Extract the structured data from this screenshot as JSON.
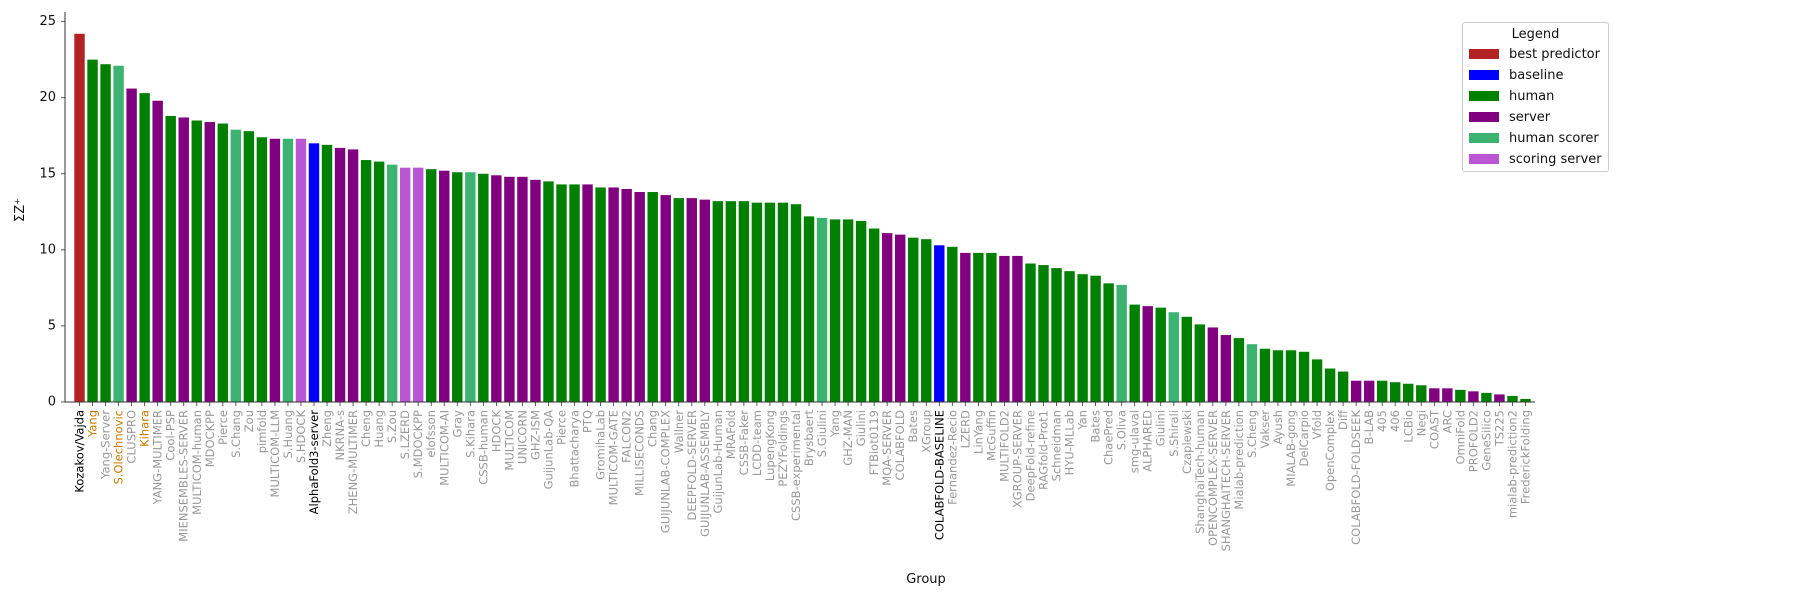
{
  "chart_data": {
    "type": "bar",
    "title": "",
    "xlabel": "Group",
    "ylabel": "ΣZ⁺",
    "ylim": [
      0,
      25.5
    ],
    "yticks": [
      0,
      5,
      10,
      15,
      20,
      25
    ],
    "grid": false,
    "legend": {
      "title": "Legend",
      "placement": "top-right",
      "entries": [
        {
          "name": "best predictor",
          "color": "#b22222"
        },
        {
          "name": "baseline",
          "color": "#0000ff"
        },
        {
          "name": "human",
          "color": "#008000"
        },
        {
          "name": "server",
          "color": "#800080"
        },
        {
          "name": "human scorer",
          "color": "#3cb371"
        },
        {
          "name": "scoring server",
          "color": "#ba55d3"
        }
      ]
    },
    "label_colors": {
      "default": "#999999",
      "highlight": "#000000",
      "orange": "#cc7a00"
    },
    "bars": [
      {
        "name": "Kozakov/Vajda",
        "value": 24.2,
        "type": "best predictor",
        "label": "highlight"
      },
      {
        "name": "Yang",
        "value": 22.5,
        "type": "human",
        "label": "orange"
      },
      {
        "name": "Yang-Server",
        "value": 22.2,
        "type": "human",
        "label": "default"
      },
      {
        "name": "S.Olechnovic",
        "value": 22.1,
        "type": "human scorer",
        "label": "orange"
      },
      {
        "name": "CLUSPRO",
        "value": 20.6,
        "type": "server",
        "label": "default"
      },
      {
        "name": "Kihara",
        "value": 20.3,
        "type": "human",
        "label": "orange"
      },
      {
        "name": "YANG-MULTIMER",
        "value": 19.8,
        "type": "server",
        "label": "default"
      },
      {
        "name": "Cool-PSP",
        "value": 18.8,
        "type": "human",
        "label": "default"
      },
      {
        "name": "MIENSEMBLES-SERVER",
        "value": 18.7,
        "type": "server",
        "label": "default"
      },
      {
        "name": "MULTICOM-human",
        "value": 18.5,
        "type": "human",
        "label": "default"
      },
      {
        "name": "MDOCKPP",
        "value": 18.4,
        "type": "server",
        "label": "default"
      },
      {
        "name": "Pierce",
        "value": 18.3,
        "type": "human",
        "label": "default"
      },
      {
        "name": "S.Chang",
        "value": 17.9,
        "type": "human scorer",
        "label": "default"
      },
      {
        "name": "Zou",
        "value": 17.8,
        "type": "human",
        "label": "default"
      },
      {
        "name": "pimfold",
        "value": 17.4,
        "type": "human",
        "label": "default"
      },
      {
        "name": "MULTICOM-LLM",
        "value": 17.3,
        "type": "server",
        "label": "default"
      },
      {
        "name": "S.Huang",
        "value": 17.3,
        "type": "human scorer",
        "label": "default"
      },
      {
        "name": "S.HDOCK",
        "value": 17.3,
        "type": "scoring server",
        "label": "default"
      },
      {
        "name": "AlphaFold3-server",
        "value": 17.0,
        "type": "baseline",
        "label": "highlight"
      },
      {
        "name": "Zheng",
        "value": 16.9,
        "type": "human",
        "label": "default"
      },
      {
        "name": "NKRNA-s",
        "value": 16.7,
        "type": "server",
        "label": "default"
      },
      {
        "name": "ZHENG-MULTIMER",
        "value": 16.6,
        "type": "server",
        "label": "default"
      },
      {
        "name": "Cheng",
        "value": 15.9,
        "type": "human",
        "label": "default"
      },
      {
        "name": "Huang",
        "value": 15.8,
        "type": "human",
        "label": "default"
      },
      {
        "name": "S.Zou",
        "value": 15.6,
        "type": "human scorer",
        "label": "default"
      },
      {
        "name": "S.LZERD",
        "value": 15.4,
        "type": "scoring server",
        "label": "default"
      },
      {
        "name": "S.MDOCKPP",
        "value": 15.4,
        "type": "scoring server",
        "label": "default"
      },
      {
        "name": "elofsson",
        "value": 15.3,
        "type": "human",
        "label": "default"
      },
      {
        "name": "MULTICOM-AI",
        "value": 15.2,
        "type": "server",
        "label": "default"
      },
      {
        "name": "Gray",
        "value": 15.1,
        "type": "human",
        "label": "default"
      },
      {
        "name": "S.Kihara",
        "value": 15.1,
        "type": "human scorer",
        "label": "default"
      },
      {
        "name": "CSSB-human",
        "value": 15.0,
        "type": "human",
        "label": "default"
      },
      {
        "name": "HDOCK",
        "value": 14.9,
        "type": "server",
        "label": "default"
      },
      {
        "name": "MULTICOM",
        "value": 14.8,
        "type": "server",
        "label": "default"
      },
      {
        "name": "UNICORN",
        "value": 14.8,
        "type": "server",
        "label": "default"
      },
      {
        "name": "GHZ-ISM",
        "value": 14.6,
        "type": "server",
        "label": "default"
      },
      {
        "name": "GuijunLab-QA",
        "value": 14.5,
        "type": "human",
        "label": "default"
      },
      {
        "name": "Pierce",
        "value": 14.3,
        "type": "human",
        "label": "default"
      },
      {
        "name": "Bhattacharya",
        "value": 14.3,
        "type": "human",
        "label": "default"
      },
      {
        "name": "PTQ",
        "value": 14.3,
        "type": "server",
        "label": "default"
      },
      {
        "name": "GromihaLab",
        "value": 14.1,
        "type": "human",
        "label": "default"
      },
      {
        "name": "MULTICOM-GATE",
        "value": 14.1,
        "type": "server",
        "label": "default"
      },
      {
        "name": "FALCON2",
        "value": 14.0,
        "type": "server",
        "label": "default"
      },
      {
        "name": "MILLISECONDS",
        "value": 13.8,
        "type": "server",
        "label": "default"
      },
      {
        "name": "Chang",
        "value": 13.8,
        "type": "human",
        "label": "default"
      },
      {
        "name": "GUIJUNLAB-COMPLEX",
        "value": 13.6,
        "type": "server",
        "label": "default"
      },
      {
        "name": "Wallner",
        "value": 13.4,
        "type": "human",
        "label": "default"
      },
      {
        "name": "DEEPFOLD-SERVER",
        "value": 13.4,
        "type": "server",
        "label": "default"
      },
      {
        "name": "GUIJUNLAB-ASSEMBLY",
        "value": 13.3,
        "type": "server",
        "label": "default"
      },
      {
        "name": "GuijunLab-Human",
        "value": 13.2,
        "type": "human",
        "label": "default"
      },
      {
        "name": "MRAFold",
        "value": 13.2,
        "type": "human",
        "label": "default"
      },
      {
        "name": "CSSB-Faker",
        "value": 13.2,
        "type": "human",
        "label": "default"
      },
      {
        "name": "LCDD-team",
        "value": 13.1,
        "type": "human",
        "label": "default"
      },
      {
        "name": "LupengKong",
        "value": 13.1,
        "type": "human",
        "label": "default"
      },
      {
        "name": "PEZYFoldings",
        "value": 13.1,
        "type": "human",
        "label": "default"
      },
      {
        "name": "CSSB-experimental",
        "value": 13.0,
        "type": "human",
        "label": "default"
      },
      {
        "name": "Brysbaert",
        "value": 12.2,
        "type": "human",
        "label": "default"
      },
      {
        "name": "S.Giulini",
        "value": 12.1,
        "type": "human scorer",
        "label": "default"
      },
      {
        "name": "Yang",
        "value": 12.0,
        "type": "human",
        "label": "default"
      },
      {
        "name": "GHZ-MAN",
        "value": 12.0,
        "type": "human",
        "label": "default"
      },
      {
        "name": "Giulini",
        "value": 11.9,
        "type": "human",
        "label": "default"
      },
      {
        "name": "FTBiot0119",
        "value": 11.4,
        "type": "human",
        "label": "default"
      },
      {
        "name": "MQA-SERVER",
        "value": 11.1,
        "type": "server",
        "label": "default"
      },
      {
        "name": "COLABFOLD",
        "value": 11.0,
        "type": "server",
        "label": "default"
      },
      {
        "name": "Bates",
        "value": 10.8,
        "type": "human",
        "label": "default"
      },
      {
        "name": "XGroup",
        "value": 10.7,
        "type": "human",
        "label": "default"
      },
      {
        "name": "COLABFOLD-BASELINE",
        "value": 10.3,
        "type": "baseline",
        "label": "highlight"
      },
      {
        "name": "Fernandez-Recio",
        "value": 10.2,
        "type": "human",
        "label": "default"
      },
      {
        "name": "LZERD",
        "value": 9.8,
        "type": "server",
        "label": "default"
      },
      {
        "name": "LinYang",
        "value": 9.8,
        "type": "human",
        "label": "default"
      },
      {
        "name": "McGuffin",
        "value": 9.8,
        "type": "human",
        "label": "default"
      },
      {
        "name": "MULTIFOLD2",
        "value": 9.6,
        "type": "server",
        "label": "default"
      },
      {
        "name": "XGROUP-SERVER",
        "value": 9.6,
        "type": "server",
        "label": "default"
      },
      {
        "name": "DeepFold-refine",
        "value": 9.1,
        "type": "human",
        "label": "default"
      },
      {
        "name": "RAGfold-Prot1",
        "value": 9.0,
        "type": "human",
        "label": "default"
      },
      {
        "name": "Schneidman",
        "value": 8.8,
        "type": "human",
        "label": "default"
      },
      {
        "name": "HYU-MLLab",
        "value": 8.6,
        "type": "human",
        "label": "default"
      },
      {
        "name": "Yan",
        "value": 8.4,
        "type": "human",
        "label": "default"
      },
      {
        "name": "Bates",
        "value": 8.3,
        "type": "human",
        "label": "default"
      },
      {
        "name": "ChaePred",
        "value": 7.8,
        "type": "human",
        "label": "default"
      },
      {
        "name": "S.Oliva",
        "value": 7.7,
        "type": "human scorer",
        "label": "default"
      },
      {
        "name": "smg-ulaval",
        "value": 6.4,
        "type": "human",
        "label": "default"
      },
      {
        "name": "ALPHARED",
        "value": 6.3,
        "type": "server",
        "label": "default"
      },
      {
        "name": "Giulini",
        "value": 6.2,
        "type": "human",
        "label": "default"
      },
      {
        "name": "S.Shirali",
        "value": 5.9,
        "type": "human scorer",
        "label": "default"
      },
      {
        "name": "Czaplewski",
        "value": 5.6,
        "type": "human",
        "label": "default"
      },
      {
        "name": "ShanghaiTech-human",
        "value": 5.1,
        "type": "human",
        "label": "default"
      },
      {
        "name": "OPENCOMPLEX-SERVER",
        "value": 4.9,
        "type": "server",
        "label": "default"
      },
      {
        "name": "SHANGHAITECH-SERVER",
        "value": 4.4,
        "type": "server",
        "label": "default"
      },
      {
        "name": "Mialab-prediction",
        "value": 4.2,
        "type": "human",
        "label": "default"
      },
      {
        "name": "S.Cheng",
        "value": 3.8,
        "type": "human scorer",
        "label": "default"
      },
      {
        "name": "Vakser",
        "value": 3.5,
        "type": "human",
        "label": "default"
      },
      {
        "name": "Ayush",
        "value": 3.4,
        "type": "human",
        "label": "default"
      },
      {
        "name": "MIALAB-gong",
        "value": 3.4,
        "type": "human",
        "label": "default"
      },
      {
        "name": "DelCarpio",
        "value": 3.3,
        "type": "human",
        "label": "default"
      },
      {
        "name": "Vfold",
        "value": 2.8,
        "type": "human",
        "label": "default"
      },
      {
        "name": "OpenComplex",
        "value": 2.2,
        "type": "human",
        "label": "default"
      },
      {
        "name": "Diff",
        "value": 2.0,
        "type": "human",
        "label": "default"
      },
      {
        "name": "COLABFOLD-FOLDSEEK",
        "value": 1.4,
        "type": "server",
        "label": "default"
      },
      {
        "name": "B-LAB",
        "value": 1.4,
        "type": "server",
        "label": "default"
      },
      {
        "name": "405",
        "value": 1.4,
        "type": "human",
        "label": "default"
      },
      {
        "name": "406",
        "value": 1.3,
        "type": "human",
        "label": "default"
      },
      {
        "name": "LCBio",
        "value": 1.2,
        "type": "human",
        "label": "default"
      },
      {
        "name": "Negi",
        "value": 1.1,
        "type": "human",
        "label": "default"
      },
      {
        "name": "COAST",
        "value": 0.9,
        "type": "server",
        "label": "default"
      },
      {
        "name": "ARC",
        "value": 0.9,
        "type": "server",
        "label": "default"
      },
      {
        "name": "OmniFold",
        "value": 0.8,
        "type": "human",
        "label": "default"
      },
      {
        "name": "PROFOLD2",
        "value": 0.7,
        "type": "server",
        "label": "default"
      },
      {
        "name": "GeneSilico",
        "value": 0.6,
        "type": "human",
        "label": "default"
      },
      {
        "name": "TS225",
        "value": 0.5,
        "type": "server",
        "label": "default"
      },
      {
        "name": "mialab-prediction2",
        "value": 0.4,
        "type": "human",
        "label": "default"
      },
      {
        "name": "FrederickFolding",
        "value": 0.2,
        "type": "human",
        "label": "default"
      }
    ]
  }
}
